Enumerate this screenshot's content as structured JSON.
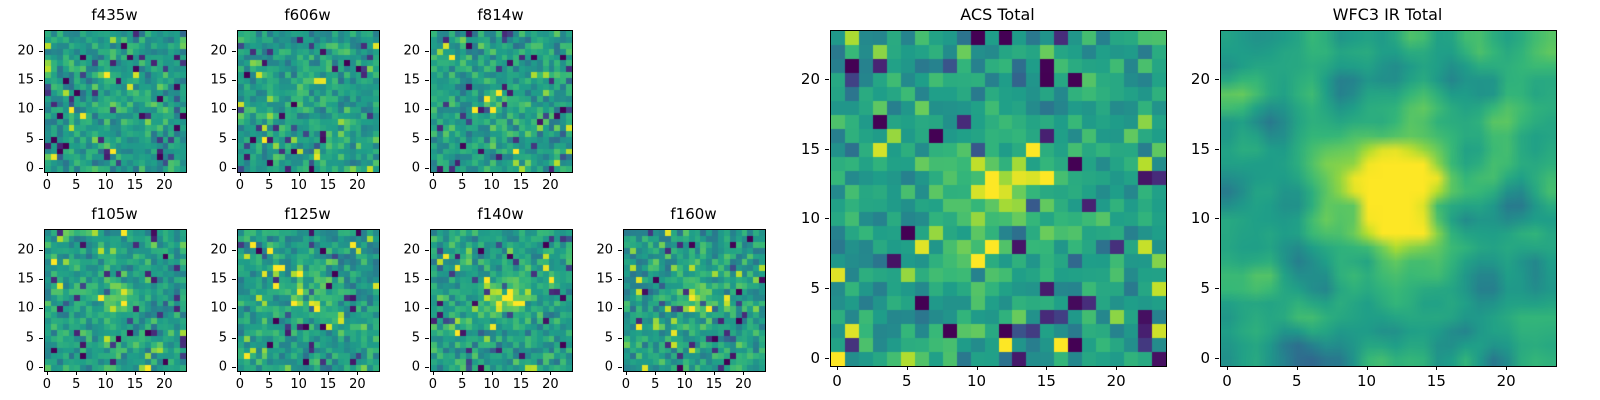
{
  "figure": {
    "background": "#ffffff",
    "text_color": "#000000"
  },
  "chart_data": {
    "type": "heatmap",
    "colormap": "viridis",
    "grid_size": 24,
    "xticks": [
      0,
      5,
      10,
      15,
      20
    ],
    "yticks": [
      0,
      5,
      10,
      15,
      20
    ],
    "xlim": [
      -0.5,
      23.5
    ],
    "ylim": [
      -0.5,
      23.5
    ],
    "panels": [
      {
        "title": "f435w",
        "size": "small",
        "seed": 4351,
        "smooth": false,
        "source_amp": 0.08,
        "source_sigma": 2.2,
        "dark_frac": 0.07,
        "bright_frac": 0.08
      },
      {
        "title": "f606w",
        "size": "small",
        "seed": 6061,
        "smooth": false,
        "source_amp": 0.08,
        "source_sigma": 2.2,
        "dark_frac": 0.07,
        "bright_frac": 0.08
      },
      {
        "title": "f814w",
        "size": "small",
        "seed": 8141,
        "smooth": false,
        "source_amp": 0.12,
        "source_sigma": 2.2,
        "dark_frac": 0.07,
        "bright_frac": 0.08
      },
      {
        "title": "f105w",
        "size": "small",
        "seed": 1051,
        "smooth": false,
        "source_amp": 0.3,
        "source_sigma": 2.0,
        "dark_frac": 0.06,
        "bright_frac": 0.08
      },
      {
        "title": "f125w",
        "size": "small",
        "seed": 1251,
        "smooth": false,
        "source_amp": 0.25,
        "source_sigma": 2.2,
        "dark_frac": 0.06,
        "bright_frac": 0.08
      },
      {
        "title": "f140w",
        "size": "small",
        "seed": 1401,
        "smooth": false,
        "source_amp": 0.35,
        "source_sigma": 2.5,
        "dark_frac": 0.06,
        "bright_frac": 0.09
      },
      {
        "title": "f160w",
        "size": "small",
        "seed": 1601,
        "smooth": false,
        "source_amp": 0.3,
        "source_sigma": 2.3,
        "dark_frac": 0.06,
        "bright_frac": 0.08
      },
      {
        "title": "ACS Total",
        "size": "large",
        "seed": 7771,
        "smooth": false,
        "source_amp": 0.3,
        "source_sigma": 3.0,
        "dark_frac": 0.06,
        "bright_frac": 0.09
      },
      {
        "title": "WFC3 IR Total",
        "size": "large",
        "seed": 8881,
        "smooth": true,
        "source_amp": 0.5,
        "source_sigma": 2.8,
        "dark_frac": 0.05,
        "bright_frac": 0.07
      }
    ]
  }
}
